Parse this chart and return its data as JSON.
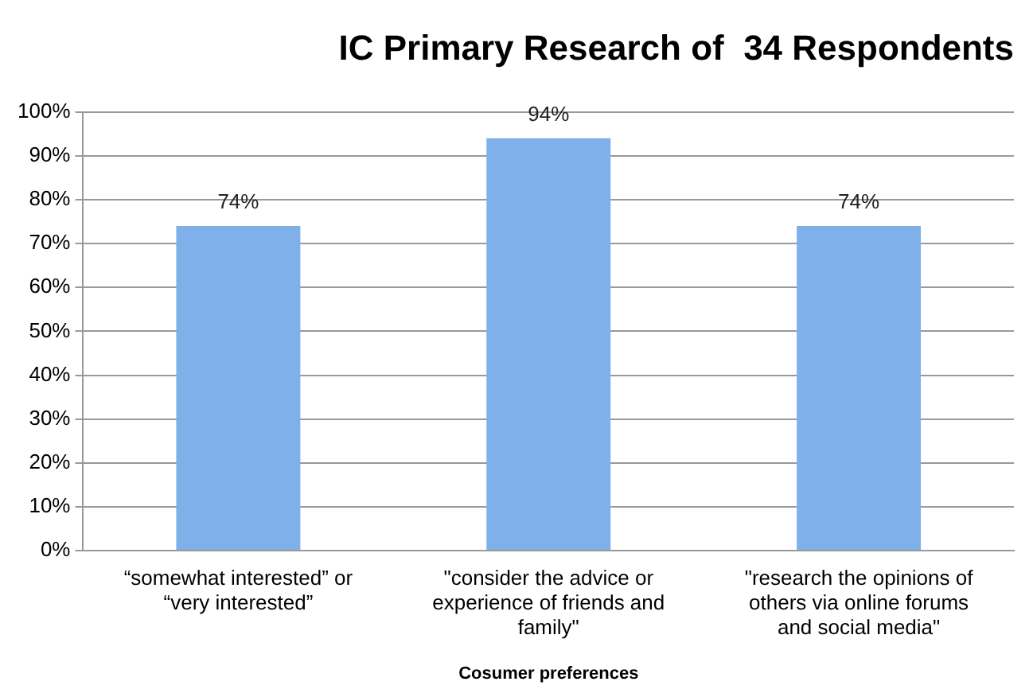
{
  "chart_data": {
    "type": "bar",
    "title": "IC Primary Research of  34 Respondents",
    "xlabel": "Cosumer preferences",
    "categories": [
      "“somewhat interested” or “very interested”",
      "\"consider the advice or experience of friends and family\"",
      "\"research the opinions of others via online forums and social media\""
    ],
    "values": [
      74,
      94,
      74
    ],
    "color": "#7fb0ea",
    "value_labels": [
      "74%",
      "94%",
      "74%"
    ],
    "ylim": [
      0,
      100
    ],
    "yticks": [
      {
        "value": 0,
        "label": "0%"
      },
      {
        "value": 10,
        "label": "10%"
      },
      {
        "value": 20,
        "label": "20%"
      },
      {
        "value": 30,
        "label": "30%"
      },
      {
        "value": 40,
        "label": "40%"
      },
      {
        "value": 50,
        "label": "50%"
      },
      {
        "value": 60,
        "label": "60%"
      },
      {
        "value": 70,
        "label": "70%"
      },
      {
        "value": 80,
        "label": "80%"
      },
      {
        "value": 90,
        "label": "90%"
      },
      {
        "value": 100,
        "label": "100%"
      }
    ],
    "grid": "y",
    "legend": false
  }
}
